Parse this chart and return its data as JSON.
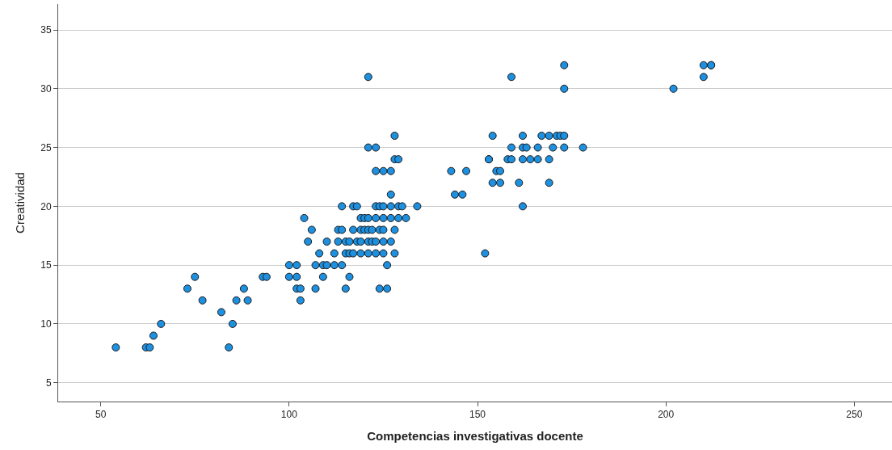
{
  "chart_data": {
    "type": "scatter",
    "xlabel": "Competencias investigativas docente",
    "ylabel": "Creatividad",
    "xlim": [
      38.7,
      260
    ],
    "xticks": [
      50,
      100,
      150,
      200,
      250
    ],
    "ylim": [
      3.4,
      37.2
    ],
    "yticks": [
      5,
      10,
      15,
      20,
      25,
      30,
      35
    ],
    "grid": "y",
    "marker": "circle",
    "series": [
      {
        "color": "#1e90e0",
        "x": [
          173,
          210,
          212,
          212,
          121,
          159,
          210,
          173,
          202,
          128,
          154,
          162,
          167,
          169,
          171,
          172,
          173,
          121,
          123,
          159,
          162,
          163,
          166,
          170,
          173,
          178,
          128,
          129,
          153,
          153,
          158,
          159,
          162,
          164,
          166,
          169,
          123,
          125,
          127,
          143,
          147,
          155,
          156,
          154,
          156,
          161,
          169,
          127,
          144,
          146,
          114,
          117,
          118,
          123,
          124,
          125,
          127,
          129,
          130,
          134,
          162,
          104,
          119,
          120,
          121,
          123,
          125,
          127,
          129,
          131,
          106,
          113,
          114,
          117,
          119,
          120,
          121,
          122,
          124,
          125,
          128,
          105,
          110,
          113,
          115,
          116,
          118,
          119,
          121,
          122,
          123,
          125,
          127,
          108,
          112,
          115,
          116,
          117,
          119,
          121,
          123,
          125,
          128,
          152,
          100,
          102,
          107,
          109,
          110,
          112,
          114,
          126,
          100,
          102,
          109,
          116,
          93,
          94,
          75,
          102,
          103,
          107,
          115,
          124,
          126,
          73,
          88,
          77,
          86,
          89,
          103,
          82,
          66,
          85,
          64,
          54,
          62,
          63,
          84
        ],
        "values": [
          32,
          32,
          32,
          32,
          31,
          31,
          31,
          30,
          30,
          26,
          26,
          26,
          26,
          26,
          26,
          26,
          26,
          25,
          25,
          25,
          25,
          25,
          25,
          25,
          25,
          25,
          24,
          24,
          24,
          24,
          24,
          24,
          24,
          24,
          24,
          24,
          23,
          23,
          23,
          23,
          23,
          23,
          23,
          22,
          22,
          22,
          22,
          21,
          21,
          21,
          20,
          20,
          20,
          20,
          20,
          20,
          20,
          20,
          20,
          20,
          20,
          19,
          19,
          19,
          19,
          19,
          19,
          19,
          19,
          19,
          18,
          18,
          18,
          18,
          18,
          18,
          18,
          18,
          18,
          18,
          18,
          17,
          17,
          17,
          17,
          17,
          17,
          17,
          17,
          17,
          17,
          17,
          17,
          16,
          16,
          16,
          16,
          16,
          16,
          16,
          16,
          16,
          16,
          16,
          15,
          15,
          15,
          15,
          15,
          15,
          15,
          15,
          14,
          14,
          14,
          14,
          14,
          14,
          14,
          13,
          13,
          13,
          13,
          13,
          13,
          13,
          13,
          12,
          12,
          12,
          12,
          11,
          10,
          10,
          9,
          8,
          8,
          8,
          8
        ]
      }
    ]
  }
}
